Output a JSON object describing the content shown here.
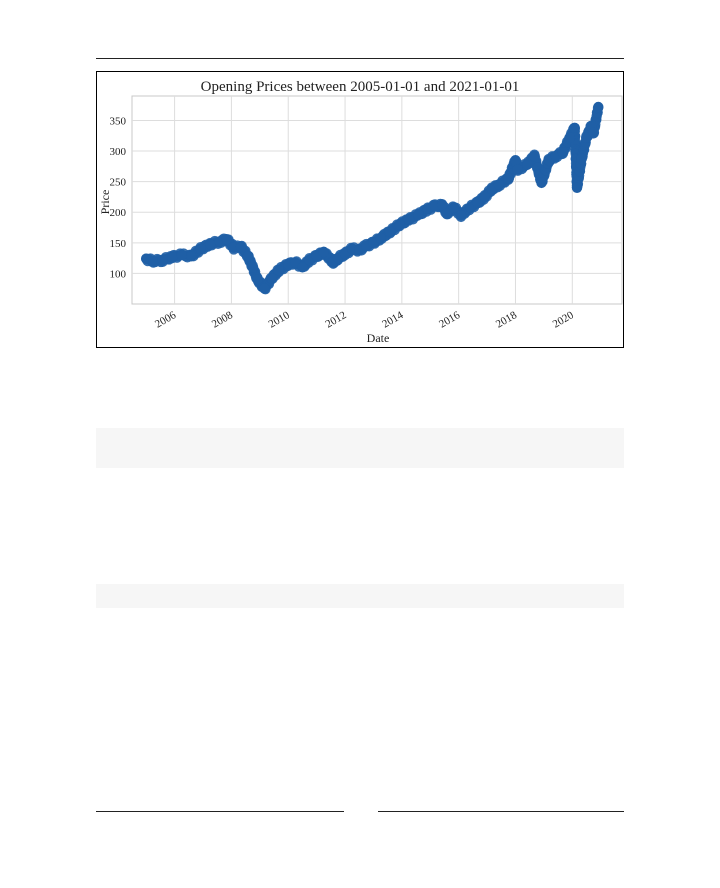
{
  "chart_data": {
    "type": "scatter",
    "title": "Opening Prices between 2005-01-01 and 2021-01-01",
    "xlabel": "Date",
    "ylabel": "Price",
    "xlim": [
      "2004-07-01",
      "2021-10-01"
    ],
    "ylim": [
      50,
      390
    ],
    "x_ticks": [
      "2006",
      "2008",
      "2010",
      "2012",
      "2014",
      "2016",
      "2018",
      "2020"
    ],
    "y_ticks": [
      100,
      150,
      200,
      250,
      300,
      350
    ],
    "grid": true,
    "marker_color": "#1f5fa6",
    "series": [
      {
        "x": [
          "2005-01",
          "2005-04",
          "2005-08",
          "2005-12",
          "2006-04",
          "2006-08",
          "2006-12",
          "2007-04",
          "2007-08",
          "2007-11",
          "2008-02",
          "2008-05",
          "2008-08",
          "2008-10",
          "2008-12",
          "2009-03",
          "2009-06",
          "2009-09",
          "2010-01",
          "2010-04",
          "2010-07",
          "2010-10",
          "2011-01",
          "2011-04",
          "2011-08",
          "2011-10",
          "2012-01",
          "2012-04",
          "2012-07",
          "2012-10",
          "2013-01",
          "2013-04",
          "2013-08",
          "2013-12",
          "2014-04",
          "2014-08",
          "2014-12",
          "2015-03",
          "2015-06",
          "2015-08",
          "2015-11",
          "2016-02",
          "2016-06",
          "2016-09",
          "2016-12",
          "2017-03",
          "2017-06",
          "2017-10",
          "2018-01",
          "2018-02",
          "2018-06",
          "2018-09",
          "2018-12",
          "2019-03",
          "2019-06",
          "2019-09",
          "2019-12",
          "2020-02",
          "2020-03",
          "2020-05",
          "2020-07",
          "2020-09",
          "2020-10",
          "2020-12"
        ],
        "y": [
          124,
          120,
          122,
          127,
          130,
          128,
          140,
          148,
          152,
          156,
          142,
          144,
          128,
          110,
          90,
          75,
          92,
          105,
          115,
          118,
          110,
          122,
          128,
          135,
          118,
          125,
          132,
          140,
          138,
          145,
          150,
          158,
          168,
          180,
          188,
          196,
          205,
          210,
          212,
          198,
          208,
          195,
          208,
          215,
          225,
          238,
          245,
          255,
          285,
          270,
          278,
          292,
          248,
          285,
          292,
          298,
          322,
          338,
          240,
          288,
          322,
          340,
          330,
          372
        ]
      }
    ]
  }
}
